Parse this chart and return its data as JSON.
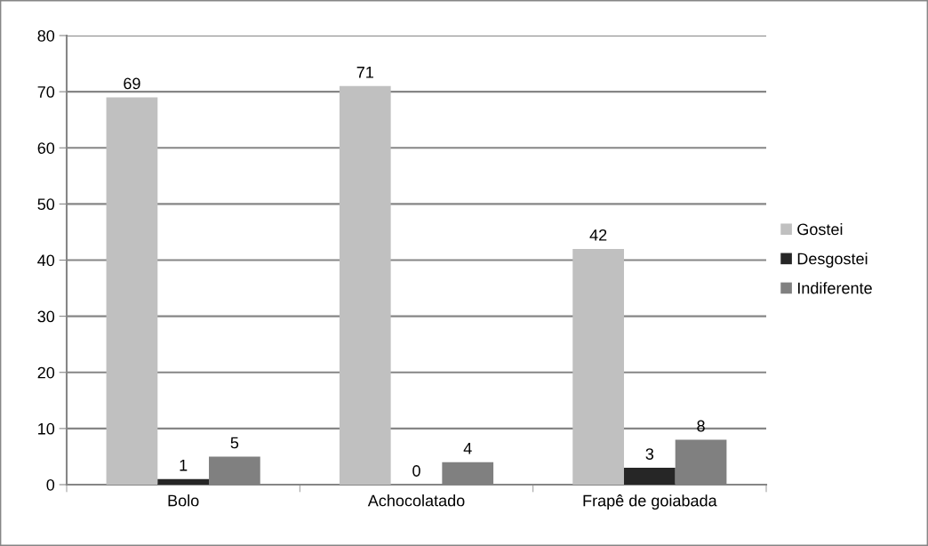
{
  "chart_data": {
    "type": "bar",
    "categories": [
      "Bolo",
      "Achocolatado",
      "Frapê de goiabada"
    ],
    "series": [
      {
        "name": "Gostei",
        "color": "#c0c0c0",
        "values": [
          69,
          71,
          42
        ]
      },
      {
        "name": "Desgostei",
        "color": "#262626",
        "values": [
          1,
          0,
          3
        ]
      },
      {
        "name": "Indiferente",
        "color": "#808080",
        "values": [
          5,
          4,
          8
        ]
      }
    ],
    "ylim": [
      0,
      80
    ],
    "yticks": [
      0,
      10,
      20,
      30,
      40,
      50,
      60,
      70,
      80
    ],
    "grid": "y",
    "legend": "right",
    "data_labels": true
  }
}
